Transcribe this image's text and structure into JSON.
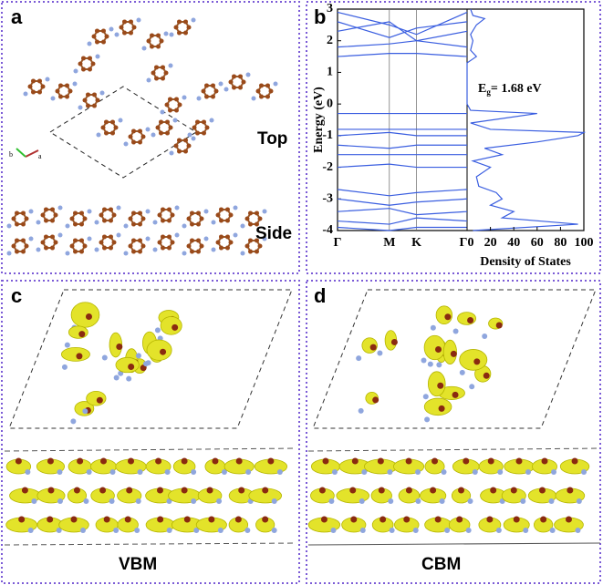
{
  "panels": {
    "a": {
      "label": "a",
      "views": [
        "Top",
        "Side"
      ],
      "axis_labels": [
        "b",
        "a"
      ]
    },
    "b": {
      "label": "b"
    },
    "c": {
      "label": "c",
      "caption": "VBM"
    },
    "d": {
      "label": "d",
      "caption": "CBM"
    }
  },
  "chart_data": [
    {
      "type": "line",
      "ylabel": "Energy (eV)",
      "categories": [
        "Γ",
        "M",
        "K",
        "Γ"
      ],
      "color": "#3a5ee0",
      "ylim": [
        -4,
        3
      ],
      "yticks": [
        -4,
        -3,
        -2,
        -1,
        0,
        1,
        2,
        3
      ],
      "annotation": {
        "main": "E",
        "sub": "g",
        "rest": "= 1.68 eV"
      },
      "series": [
        {
          "values": [
            2.9,
            2.5,
            2.2,
            2.9
          ]
        },
        {
          "values": [
            2.6,
            2.1,
            2.4,
            2.6
          ]
        },
        {
          "values": [
            2.3,
            2.6,
            2.0,
            2.3
          ]
        },
        {
          "values": [
            1.8,
            1.9,
            2.0,
            1.8
          ]
        },
        {
          "values": [
            1.5,
            1.6,
            1.6,
            1.5
          ]
        },
        {
          "values": [
            -0.3,
            -0.3,
            -0.3,
            -0.3
          ]
        },
        {
          "values": [
            -0.8,
            -0.8,
            -0.8,
            -0.8
          ]
        },
        {
          "values": [
            -1.0,
            -0.9,
            -1.0,
            -1.0
          ]
        },
        {
          "values": [
            -1.3,
            -1.4,
            -1.3,
            -1.3
          ]
        },
        {
          "values": [
            -1.6,
            -1.6,
            -1.6,
            -1.6
          ]
        },
        {
          "values": [
            -2.0,
            -1.9,
            -2.0,
            -2.0
          ]
        },
        {
          "values": [
            -2.7,
            -2.9,
            -2.8,
            -2.7
          ]
        },
        {
          "values": [
            -3.0,
            -3.2,
            -3.1,
            -3.0
          ]
        },
        {
          "values": [
            -3.4,
            -3.3,
            -3.5,
            -3.4
          ]
        },
        {
          "values": [
            -3.7,
            -3.8,
            -3.6,
            -3.7
          ]
        },
        {
          "values": [
            -3.9,
            -4.0,
            -3.9,
            -3.9
          ]
        }
      ]
    },
    {
      "type": "dos",
      "xlabel": "Density of States",
      "color": "#3a5ee0",
      "xlim": [
        0,
        100
      ],
      "xticks": [
        0,
        20,
        40,
        60,
        80,
        100
      ],
      "energy": [
        -4,
        -3.8,
        -3.6,
        -3.4,
        -3.2,
        -3.0,
        -2.8,
        -2.6,
        -2.3,
        -2.0,
        -1.8,
        -1.6,
        -1.4,
        -1.2,
        -1.0,
        -0.9,
        -0.8,
        -0.6,
        -0.3,
        -0.2,
        0,
        1.3,
        1.5,
        1.7,
        2.0,
        2.2,
        2.5,
        2.7,
        2.8,
        3
      ],
      "dos": [
        5,
        95,
        30,
        40,
        20,
        30,
        25,
        10,
        8,
        20,
        5,
        30,
        15,
        60,
        95,
        100,
        20,
        3,
        60,
        3,
        0,
        0,
        8,
        3,
        5,
        3,
        8,
        15,
        5,
        3
      ]
    }
  ]
}
